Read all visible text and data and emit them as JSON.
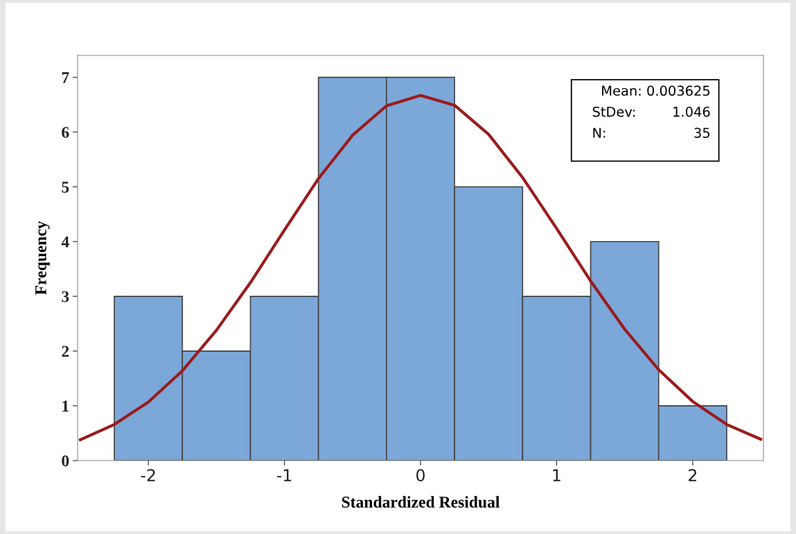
{
  "chart_data": {
    "type": "histogram",
    "xlabel": "Standardized Residual",
    "ylabel": "Frequency",
    "bins": [
      -2.25,
      -1.75,
      -1.25,
      -0.75,
      -0.25,
      0.25,
      0.75,
      1.25,
      1.75,
      2.25
    ],
    "values": [
      3,
      2,
      3,
      7,
      7,
      5,
      3,
      4,
      1
    ],
    "color": "#7ba7d9",
    "series": [
      {
        "type": "line",
        "color": "#9b1b1b",
        "x": [
          -2.5,
          -2.25,
          -2,
          -1.75,
          -1.5,
          -1.25,
          -1,
          -0.75,
          -0.5,
          -0.25,
          0,
          0.25,
          0.5,
          0.75,
          1,
          1.25,
          1.5,
          1.75,
          2,
          2.25,
          2.5
        ],
        "values": [
          0.38,
          0.66,
          1.07,
          1.64,
          2.38,
          3.25,
          4.21,
          5.15,
          5.94,
          6.48,
          6.67,
          6.49,
          5.96,
          5.17,
          4.24,
          3.28,
          2.4,
          1.66,
          1.08,
          0.66,
          0.39
        ]
      }
    ],
    "xlim": [
      -2.52,
      2.52
    ],
    "xticks": [
      -2,
      -1,
      0,
      1,
      2
    ],
    "ylim": [
      0,
      7.4
    ],
    "yticks": [
      0,
      1,
      2,
      3,
      4,
      5,
      6,
      7
    ],
    "grid": false,
    "legend": false,
    "annotations": [
      "Mean: 0.003625",
      "StDev: 1.046",
      "N: 35"
    ]
  }
}
